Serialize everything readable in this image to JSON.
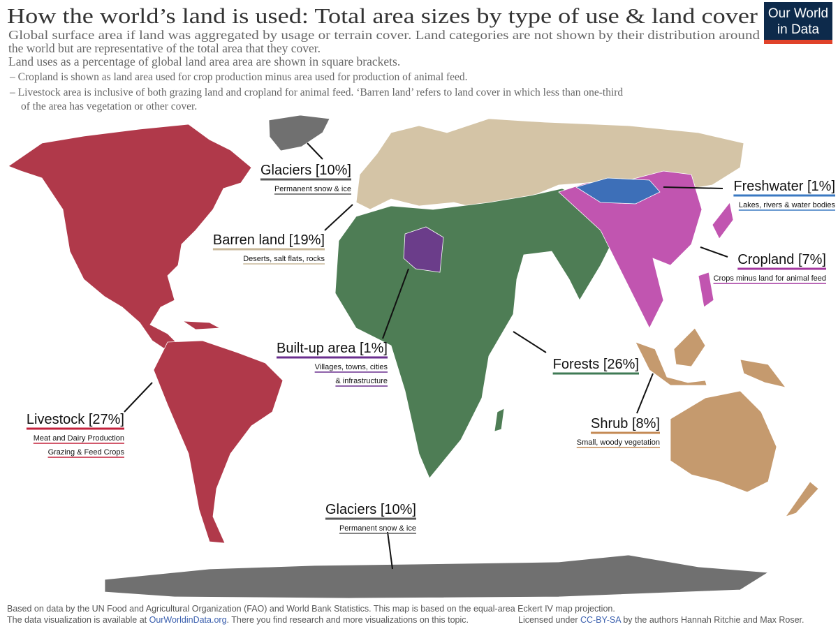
{
  "header": {
    "title": "How the world’s land is used: Total area sizes by type of use & land cover",
    "logo": [
      "Our World",
      "in Data"
    ],
    "description": [
      "Global surface area if land was aggregated by usage or terrain cover. Land categories are not shown by their distribution around",
      "the world but are representative of the total area that they cover.",
      "Land uses as a percentage of global land area area are shown in square brackets."
    ],
    "notes": [
      "– Cropland is shown as land area used for crop production minus area used for production  of animal feed.",
      "– Livestock area is inclusive of both grazing land and cropland for animal feed. ‘Barren land’ refers to land cover in which less than one-third",
      "of the area has vegetation or other cover."
    ]
  },
  "labels": [
    {
      "title": "Glaciers [10%]",
      "subtitle": [
        "Permanent snow & ice"
      ],
      "color": "#5a5a5a"
    },
    {
      "title": "Freshwater [1%]",
      "subtitle": [
        "Lakes, rivers & water bodies"
      ],
      "color": "#3a78c2"
    },
    {
      "title": "Barren land [19%]",
      "subtitle": [
        "Deserts, salt flats, rocks"
      ],
      "color": "#c8b89a"
    },
    {
      "title": "Cropland [7%]",
      "subtitle": [
        "Crops minus land for animal feed"
      ],
      "color": "#a3379f"
    },
    {
      "title": "Built-up area [1%]",
      "subtitle": [
        "Villages, towns, cities",
        "& infrastructure"
      ],
      "color": "#6a2e8e"
    },
    {
      "title": "Forests [26%]",
      "subtitle": [],
      "color": "#3f7a55"
    },
    {
      "title": "Livestock [27%]",
      "subtitle": [
        "Meat and Dairy Production",
        "Grazing & Feed Crops"
      ],
      "color": "#c3223c"
    },
    {
      "title": "Shrub [8%]",
      "subtitle": [
        "Small, woody vegetation"
      ],
      "color": "#c48a55"
    },
    {
      "title": "Glaciers [10%]",
      "subtitle": [
        "Permanent snow & ice"
      ],
      "color": "#5a5a5a"
    }
  ],
  "footer": {
    "source": "Based on data by the UN Food and Agricultural Organization (FAO) and World Bank Statistics. This map is based on the equal-area Eckert IV map projection.",
    "availability": [
      "The data visualization is available at ",
      "OurWorldinData.org",
      ". There you find research and more visualizations on this topic."
    ],
    "license": [
      "Licensed under ",
      "CC-BY-SA",
      " by the authors Hannah Ritchie and Max Roser."
    ]
  }
}
